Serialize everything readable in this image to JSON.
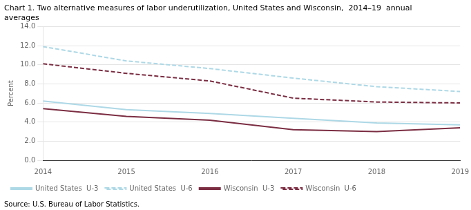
{
  "chart_data": {
    "type": "line",
    "title": [
      "Chart 1. Two alternative measures of labor underutilization, United States and Wisconsin,  2014–19  annual",
      "averages"
    ],
    "annotations": [
      "Source: U.S. Bureau of Labor Statistics."
    ],
    "ylabel": "Percent",
    "x": [
      2014,
      2015,
      2016,
      2017,
      2018,
      2019
    ],
    "xlim": [
      2014,
      2019
    ],
    "xticks": [
      2014,
      2015,
      2016,
      2017,
      2018,
      2019
    ],
    "ylim": [
      0,
      14
    ],
    "yticks": [
      {
        "value": 0,
        "label": "0.0"
      },
      {
        "value": 2,
        "label": "2.0"
      },
      {
        "value": 4,
        "label": "4.0"
      },
      {
        "value": 6,
        "label": "6.0"
      },
      {
        "value": 8,
        "label": "8.0"
      },
      {
        "value": 10,
        "label": "10.0"
      },
      {
        "value": 12,
        "label": "12.0"
      },
      {
        "value": 14,
        "label": "14.0"
      }
    ],
    "grid": "y",
    "legend": "lower left",
    "series": [
      {
        "name": "United States  U-3",
        "color": "#add8e6",
        "line_style": "solid",
        "values": [
          6.2,
          5.3,
          4.9,
          4.4,
          3.9,
          3.7
        ]
      },
      {
        "name": "United States  U-6",
        "color": "#add8e6",
        "line_style": "dashed",
        "values": [
          11.9,
          10.4,
          9.6,
          8.6,
          7.7,
          7.2
        ]
      },
      {
        "name": "Wisconsin  U-3",
        "color": "#7b2d42",
        "line_style": "solid",
        "values": [
          5.4,
          4.6,
          4.2,
          3.2,
          3.0,
          3.4
        ]
      },
      {
        "name": "Wisconsin  U-6",
        "color": "#7b2d42",
        "line_style": "dashed",
        "values": [
          10.1,
          9.1,
          8.3,
          6.5,
          6.1,
          6.0
        ]
      }
    ]
  }
}
